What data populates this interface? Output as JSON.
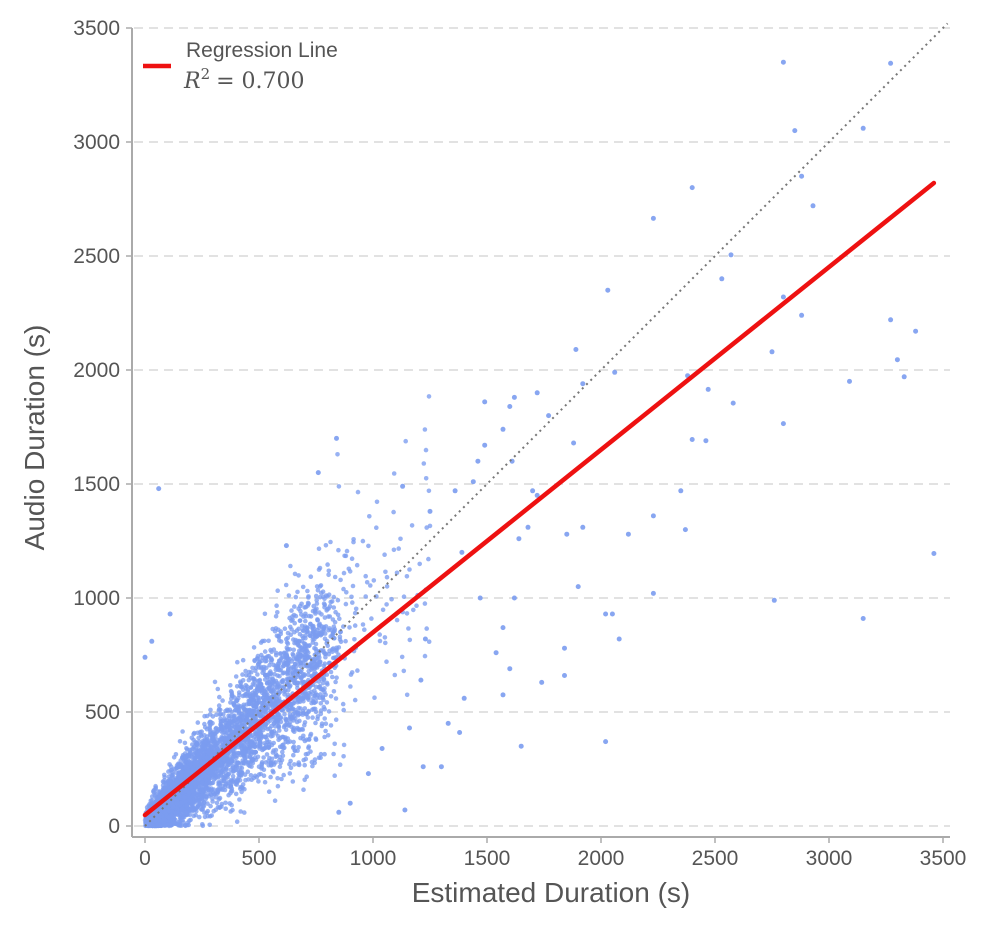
{
  "chart_data": {
    "type": "scatter",
    "title": "",
    "xlabel": "Estimated Duration (s)",
    "ylabel": "Audio Duration (s)",
    "xlim": [
      -60,
      3540
    ],
    "ylim": [
      -50,
      3520
    ],
    "xticks": [
      0,
      500,
      1000,
      1500,
      2000,
      2500,
      3000,
      3500
    ],
    "yticks": [
      0,
      500,
      1000,
      1500,
      2000,
      2500,
      3000,
      3500
    ],
    "grid": "horizontal dashed",
    "legend": {
      "placement": "top-left",
      "entries": [
        {
          "label": "Regression Line",
          "sublabel_base": "R",
          "sublabel_exp": "2",
          "sublabel_value": "= 0.700"
        }
      ]
    },
    "colors": {
      "points": "#7b9cf0",
      "regression": "#ee1111",
      "identity": "#777777",
      "grid": "#d8d8d8",
      "axis": "#aaaaaa",
      "text": "#555555"
    },
    "regression": {
      "x": [
        0,
        3460
      ],
      "y": [
        48,
        2820
      ],
      "r_squared": 0.7
    },
    "identity_line": {
      "x": [
        0,
        3520
      ],
      "y": [
        0,
        3520
      ]
    },
    "cluster": {
      "count": 4200,
      "note": "dense cloud of points from 0 to about 1200 s estimated duration",
      "max_x": 1250
    },
    "outliers": [
      [
        2800,
        3350
      ],
      [
        3270,
        3345
      ],
      [
        2850,
        3050
      ],
      [
        3150,
        3060
      ],
      [
        2880,
        2850
      ],
      [
        2930,
        2720
      ],
      [
        2400,
        2800
      ],
      [
        2230,
        2665
      ],
      [
        2570,
        2505
      ],
      [
        2530,
        2400
      ],
      [
        2800,
        2320
      ],
      [
        2880,
        2240
      ],
      [
        2030,
        2350
      ],
      [
        3270,
        2220
      ],
      [
        3380,
        2170
      ],
      [
        3300,
        2045
      ],
      [
        3330,
        1970
      ],
      [
        3090,
        1950
      ],
      [
        2380,
        1975
      ],
      [
        2750,
        2080
      ],
      [
        2580,
        1855
      ],
      [
        2470,
        1915
      ],
      [
        2800,
        1765
      ],
      [
        2400,
        1695
      ],
      [
        2460,
        1690
      ],
      [
        2060,
        1990
      ],
      [
        1920,
        1940
      ],
      [
        1890,
        2090
      ],
      [
        1880,
        1680
      ],
      [
        1720,
        1900
      ],
      [
        1770,
        1800
      ],
      [
        1620,
        1880
      ],
      [
        1600,
        1840
      ],
      [
        1610,
        1600
      ],
      [
        1490,
        1860
      ],
      [
        1570,
        1740
      ],
      [
        1490,
        1670
      ],
      [
        1440,
        1510
      ],
      [
        1360,
        1470
      ],
      [
        1460,
        1600
      ],
      [
        1700,
        1470
      ],
      [
        1720,
        1450
      ],
      [
        1680,
        1310
      ],
      [
        1640,
        1260
      ],
      [
        1850,
        1280
      ],
      [
        1920,
        1310
      ],
      [
        2230,
        1360
      ],
      [
        2120,
        1280
      ],
      [
        2350,
        1470
      ],
      [
        2370,
        1300
      ],
      [
        2230,
        1020
      ],
      [
        2020,
        930
      ],
      [
        2050,
        930
      ],
      [
        2080,
        820
      ],
      [
        1900,
        1050
      ],
      [
        1840,
        780
      ],
      [
        1840,
        660
      ],
      [
        1620,
        1000
      ],
      [
        1570,
        870
      ],
      [
        1600,
        690
      ],
      [
        1540,
        760
      ],
      [
        1650,
        350
      ],
      [
        1740,
        630
      ],
      [
        2020,
        370
      ],
      [
        3460,
        1195
      ],
      [
        3150,
        910
      ],
      [
        2760,
        990
      ],
      [
        1570,
        575
      ],
      [
        1400,
        560
      ],
      [
        1380,
        410
      ],
      [
        1330,
        450
      ],
      [
        1470,
        1000
      ],
      [
        1140,
        70
      ],
      [
        1220,
        260
      ],
      [
        60,
        1480
      ],
      [
        840,
        1700
      ],
      [
        110,
        930
      ],
      [
        30,
        810
      ],
      [
        0,
        740
      ],
      [
        760,
        1550
      ],
      [
        620,
        1230
      ],
      [
        1130,
        1490
      ],
      [
        1250,
        1380
      ],
      [
        1390,
        1200
      ],
      [
        1230,
        820
      ],
      [
        1210,
        640
      ],
      [
        1160,
        430
      ],
      [
        980,
        230
      ],
      [
        1300,
        260
      ],
      [
        1040,
        340
      ],
      [
        900,
        100
      ],
      [
        850,
        60
      ]
    ]
  }
}
